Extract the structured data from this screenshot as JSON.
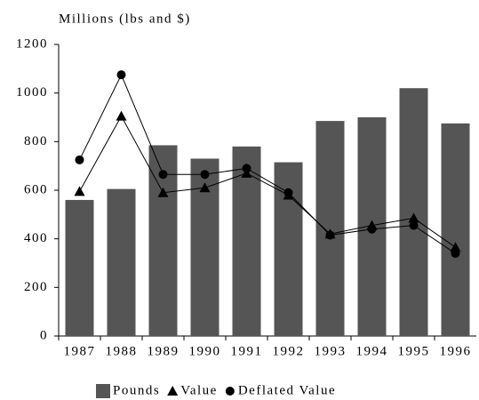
{
  "chart_data": {
    "type": "bar",
    "title": "Millions (lbs and $)",
    "categories": [
      "1987",
      "1988",
      "1989",
      "1990",
      "1991",
      "1992",
      "1993",
      "1994",
      "1995",
      "1996"
    ],
    "series": [
      {
        "name": "Pounds",
        "color": "#555555",
        "type": "bar",
        "values": [
          560,
          605,
          785,
          730,
          780,
          715,
          885,
          900,
          1020,
          875
        ]
      },
      {
        "name": "Value",
        "color": "#000000",
        "type": "line",
        "marker": "triangle",
        "values": [
          595,
          905,
          590,
          610,
          670,
          580,
          420,
          455,
          485,
          365
        ]
      },
      {
        "name": "Deflated Value",
        "color": "#000000",
        "type": "line",
        "marker": "circle",
        "values": [
          725,
          1075,
          665,
          665,
          690,
          590,
          415,
          440,
          455,
          340
        ]
      }
    ],
    "ylim": [
      0,
      1200
    ],
    "yticks": [
      0,
      200,
      400,
      600,
      800,
      1000,
      1200
    ],
    "legend": "bottom"
  }
}
